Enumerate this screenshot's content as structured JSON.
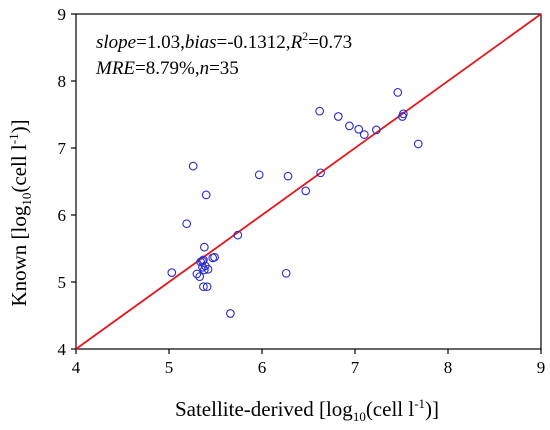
{
  "chart_data": {
    "type": "scatter",
    "xlabel_parts": [
      "Satellite-derived [log",
      "10",
      "(cell l",
      "-1",
      ")]"
    ],
    "ylabel_parts": [
      "Known [log",
      "10",
      "(cell l",
      "-1",
      ")]"
    ],
    "xlim": [
      4,
      9
    ],
    "ylim": [
      4,
      9
    ],
    "xticks": [
      4,
      5,
      6,
      7,
      8,
      9
    ],
    "yticks": [
      4,
      5,
      6,
      7,
      8,
      9
    ],
    "annotation_line1": {
      "slope_name": "slope",
      "slope_val": "=1.03,",
      "bias_name": "bias",
      "bias_val": "=-0.1312,",
      "r_name": "R",
      "r_sup": "2",
      "r_val": "=0.73"
    },
    "annotation_line2": {
      "mre_name": "MRE",
      "mre_val": "=8.79%,",
      "n_name": "n",
      "n_val": "=35"
    },
    "fit_line": {
      "x": [
        4,
        9
      ],
      "y": [
        4,
        9
      ],
      "color": "#e8141b"
    },
    "marker_color": "#2b2bcc",
    "points": [
      {
        "x": 5.03,
        "y": 5.14
      },
      {
        "x": 5.19,
        "y": 5.87
      },
      {
        "x": 5.26,
        "y": 6.73
      },
      {
        "x": 5.3,
        "y": 5.12
      },
      {
        "x": 5.33,
        "y": 5.08
      },
      {
        "x": 5.34,
        "y": 5.3
      },
      {
        "x": 5.36,
        "y": 5.22
      },
      {
        "x": 5.37,
        "y": 4.93
      },
      {
        "x": 5.37,
        "y": 5.33
      },
      {
        "x": 5.38,
        "y": 5.52
      },
      {
        "x": 5.39,
        "y": 5.24
      },
      {
        "x": 5.4,
        "y": 6.3
      },
      {
        "x": 5.41,
        "y": 4.93
      },
      {
        "x": 5.42,
        "y": 5.19
      },
      {
        "x": 5.47,
        "y": 5.36
      },
      {
        "x": 5.49,
        "y": 5.37
      },
      {
        "x": 5.66,
        "y": 4.53
      },
      {
        "x": 5.74,
        "y": 5.7
      },
      {
        "x": 5.97,
        "y": 6.6
      },
      {
        "x": 6.26,
        "y": 5.13
      },
      {
        "x": 6.28,
        "y": 6.58
      },
      {
        "x": 6.47,
        "y": 6.36
      },
      {
        "x": 6.62,
        "y": 7.55
      },
      {
        "x": 6.63,
        "y": 6.63
      },
      {
        "x": 6.82,
        "y": 7.47
      },
      {
        "x": 6.94,
        "y": 7.33
      },
      {
        "x": 7.04,
        "y": 7.28
      },
      {
        "x": 7.1,
        "y": 7.2
      },
      {
        "x": 7.23,
        "y": 7.27
      },
      {
        "x": 7.46,
        "y": 7.83
      },
      {
        "x": 7.51,
        "y": 7.47
      },
      {
        "x": 7.52,
        "y": 7.51
      },
      {
        "x": 7.68,
        "y": 7.06
      },
      {
        "x": 5.36,
        "y": 5.31
      },
      {
        "x": 5.38,
        "y": 5.18
      }
    ]
  }
}
